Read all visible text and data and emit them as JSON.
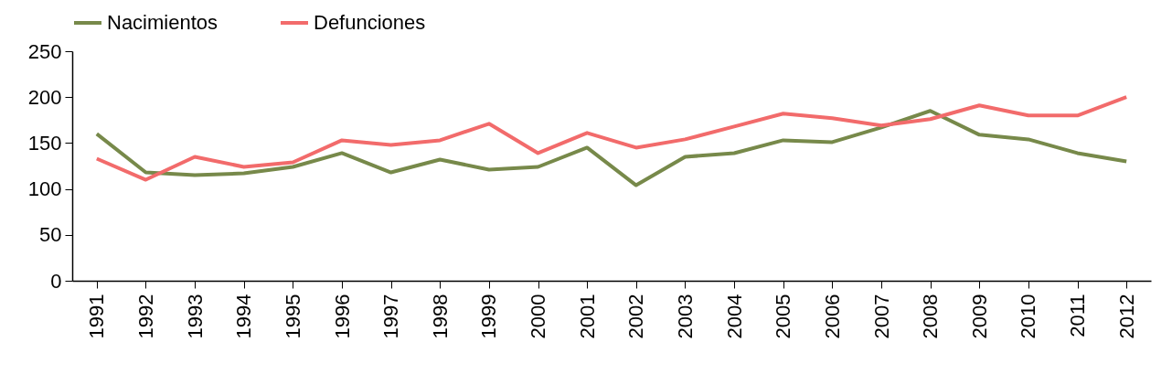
{
  "chart_data": {
    "type": "line",
    "categories": [
      "1991",
      "1992",
      "1993",
      "1994",
      "1995",
      "1996",
      "1997",
      "1998",
      "1999",
      "2000",
      "2001",
      "2002",
      "2003",
      "2004",
      "2005",
      "2006",
      "2007",
      "2008",
      "2009",
      "2010",
      "2011",
      "2012"
    ],
    "series": [
      {
        "name": "Nacimientos",
        "color": "#77894a",
        "values": [
          160,
          118,
          115,
          117,
          124,
          139,
          118,
          132,
          121,
          124,
          145,
          104,
          135,
          139,
          153,
          151,
          167,
          185,
          159,
          154,
          139,
          130
        ]
      },
      {
        "name": "Defunciones",
        "color": "#f26b6b",
        "values": [
          133,
          110,
          135,
          124,
          129,
          153,
          148,
          153,
          171,
          139,
          161,
          145,
          154,
          168,
          182,
          177,
          169,
          176,
          191,
          180,
          180,
          200
        ]
      }
    ],
    "ylim": [
      0,
      250
    ],
    "yticks": [
      0,
      50,
      100,
      150,
      200,
      250
    ],
    "grid": false,
    "legend": "top",
    "marker": "none",
    "line_style": "solid"
  }
}
